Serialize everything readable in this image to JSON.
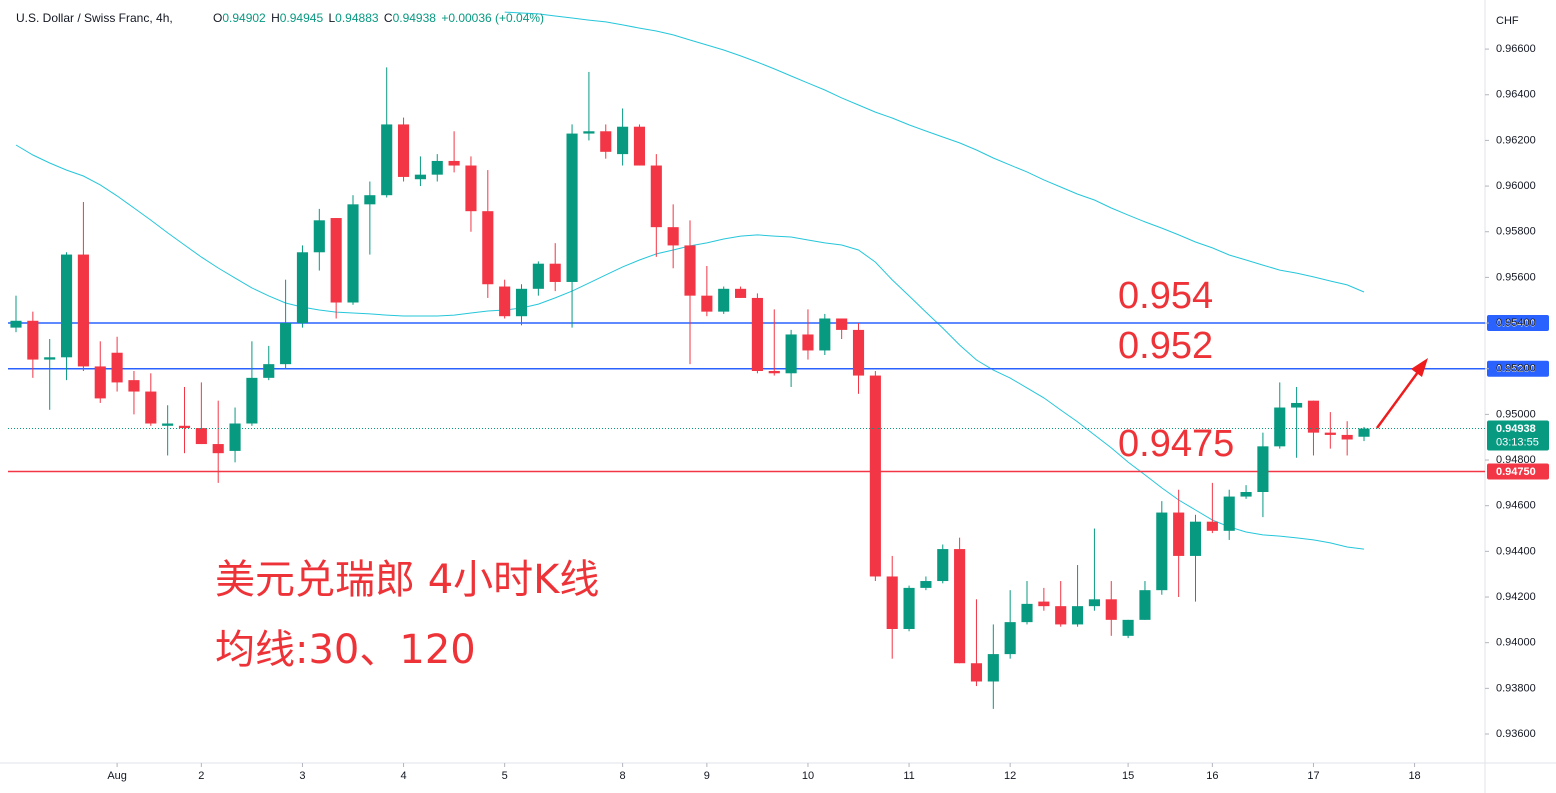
{
  "chart_data": {
    "type": "candlestick",
    "title": "U.S. Dollar / Swiss Franc, 4h,",
    "ohlc_labels": [
      "O",
      "H",
      "L",
      "C"
    ],
    "change": "+0.00036 (+0.04%)",
    "countdown": "03:13:55",
    "y_axis_label": "CHF",
    "up_color": "#089981",
    "down_color": "#f23645",
    "candles": {
      "open": [
        0.9538,
        0.9541,
        0.9524,
        0.9525,
        0.957,
        0.9521,
        0.9527,
        0.9515,
        0.951,
        0.9495,
        0.9495,
        0.9494,
        0.9487,
        0.9484,
        0.9496,
        0.9516,
        0.9522,
        0.954,
        0.9571,
        0.9586,
        0.9549,
        0.9592,
        0.9596,
        0.9627,
        0.9603,
        0.9605,
        0.9611,
        0.9609,
        0.9589,
        0.9556,
        0.9543,
        0.9555,
        0.9566,
        0.9558,
        0.9623,
        0.9624,
        0.9614,
        0.9626,
        0.9609,
        0.9582,
        0.9574,
        0.9552,
        0.9545,
        0.9555,
        0.9551,
        0.9519,
        0.9518,
        0.9535,
        0.9528,
        0.9542,
        0.9537,
        0.9517,
        0.9429,
        0.9406,
        0.9424,
        0.9427,
        0.9441,
        0.9391,
        0.9383,
        0.9395,
        0.9409,
        0.9418,
        0.9416,
        0.9408,
        0.9416,
        0.9419,
        0.9403,
        0.941,
        0.9423,
        0.9457,
        0.9438,
        0.9453,
        0.9449,
        0.9464,
        0.9466,
        0.9486,
        0.9503,
        0.9506,
        0.9492,
        0.9491,
        0.94902
      ],
      "high": [
        0.9552,
        0.9545,
        0.9533,
        0.9571,
        0.9593,
        0.9532,
        0.9534,
        0.9519,
        0.9518,
        0.9504,
        0.9512,
        0.9514,
        0.9506,
        0.9503,
        0.9532,
        0.953,
        0.9559,
        0.9574,
        0.959,
        0.9586,
        0.9596,
        0.9602,
        0.9652,
        0.963,
        0.9613,
        0.9614,
        0.9624,
        0.9613,
        0.9607,
        0.9559,
        0.9557,
        0.9567,
        0.9575,
        0.9627,
        0.965,
        0.9627,
        0.9634,
        0.9627,
        0.9614,
        0.9592,
        0.9585,
        0.9565,
        0.9556,
        0.9556,
        0.9553,
        0.9546,
        0.9537,
        0.9546,
        0.9544,
        0.9542,
        0.954,
        0.9519,
        0.9438,
        0.9425,
        0.9429,
        0.9443,
        0.9446,
        0.9419,
        0.9408,
        0.9423,
        0.9427,
        0.9424,
        0.9427,
        0.9434,
        0.945,
        0.9427,
        0.941,
        0.9427,
        0.9462,
        0.9467,
        0.9456,
        0.947,
        0.9467,
        0.9469,
        0.9492,
        0.9514,
        0.9512,
        0.9506,
        0.9501,
        0.9497,
        0.94945
      ],
      "low": [
        0.9536,
        0.9516,
        0.9502,
        0.9515,
        0.9519,
        0.9505,
        0.951,
        0.95,
        0.9495,
        0.9482,
        0.9483,
        0.9487,
        0.947,
        0.9479,
        0.9495,
        0.9515,
        0.952,
        0.9538,
        0.9563,
        0.9542,
        0.9548,
        0.957,
        0.9595,
        0.9602,
        0.96,
        0.9602,
        0.9606,
        0.958,
        0.9551,
        0.9542,
        0.9539,
        0.9552,
        0.9554,
        0.9538,
        0.962,
        0.9612,
        0.9609,
        0.9609,
        0.9569,
        0.9564,
        0.9522,
        0.9543,
        0.9544,
        0.9551,
        0.9518,
        0.9517,
        0.9512,
        0.9524,
        0.9526,
        0.9533,
        0.9509,
        0.9427,
        0.9393,
        0.9405,
        0.9423,
        0.9426,
        0.9391,
        0.9381,
        0.9371,
        0.9393,
        0.9408,
        0.9414,
        0.9407,
        0.9407,
        0.9414,
        0.9403,
        0.9402,
        0.941,
        0.9421,
        0.942,
        0.9418,
        0.9448,
        0.9445,
        0.9463,
        0.9455,
        0.9485,
        0.9481,
        0.9482,
        0.9485,
        0.9482,
        0.94883
      ],
      "close": [
        0.9541,
        0.9524,
        0.9525,
        0.957,
        0.9521,
        0.9507,
        0.9514,
        0.951,
        0.9496,
        0.9496,
        0.9494,
        0.9487,
        0.9483,
        0.9496,
        0.9516,
        0.9522,
        0.954,
        0.9571,
        0.9585,
        0.9549,
        0.9592,
        0.9596,
        0.9627,
        0.9604,
        0.9605,
        0.9611,
        0.9609,
        0.9589,
        0.9557,
        0.9543,
        0.9555,
        0.9566,
        0.9558,
        0.9623,
        0.9624,
        0.9615,
        0.9626,
        0.9609,
        0.9582,
        0.9574,
        0.9552,
        0.9545,
        0.9555,
        0.9551,
        0.9519,
        0.9518,
        0.9535,
        0.9528,
        0.9542,
        0.9537,
        0.9517,
        0.9429,
        0.9406,
        0.9424,
        0.9427,
        0.9441,
        0.9391,
        0.9383,
        0.9395,
        0.9409,
        0.9417,
        0.9416,
        0.9408,
        0.9416,
        0.9419,
        0.941,
        0.941,
        0.9423,
        0.9457,
        0.9438,
        0.9453,
        0.9449,
        0.9464,
        0.9466,
        0.9486,
        0.9503,
        0.9505,
        0.9492,
        0.9491,
        0.9489,
        0.94938
      ]
    },
    "moving_averages": [
      {
        "color": "#26c6da",
        "values": [
          0.9618,
          0.96136,
          0.96101,
          0.9607,
          0.96044,
          0.96005,
          0.95957,
          0.95904,
          0.95851,
          0.95795,
          0.95742,
          0.95689,
          0.95641,
          0.95597,
          0.95554,
          0.95519,
          0.95488,
          0.9547,
          0.95457,
          0.95448,
          0.95444,
          0.9544,
          0.95435,
          0.95431,
          0.95431,
          0.95431,
          0.95435,
          0.95444,
          0.95453,
          0.95457,
          0.95466,
          0.95483,
          0.9551,
          0.9554,
          0.95575,
          0.95611,
          0.95646,
          0.95676,
          0.95703,
          0.9572,
          0.95738,
          0.95751,
          0.95768,
          0.95781,
          0.95786,
          0.95781,
          0.95777,
          0.95764,
          0.95751,
          0.95742,
          0.9572,
          0.95667,
          0.95589,
          0.95519,
          0.95448,
          0.95378,
          0.95304,
          0.95238,
          0.95194,
          0.95159,
          0.95116,
          0.95072,
          0.95019,
          0.94967,
          0.9491,
          0.94853,
          0.94791,
          0.94735,
          0.94678,
          0.94625,
          0.94581,
          0.94537,
          0.94507,
          0.94485,
          0.94472,
          0.94467,
          0.94459,
          0.9445,
          0.94437,
          0.94419,
          0.9441
        ]
      },
      {
        "color": "#26c6da",
        "values": [
          null,
          null,
          null,
          null,
          null,
          null,
          null,
          null,
          null,
          null,
          null,
          null,
          null,
          null,
          null,
          null,
          null,
          null,
          null,
          null,
          null,
          null,
          null,
          null,
          null,
          null,
          null,
          null,
          null,
          0.96762,
          0.96758,
          0.96754,
          0.96745,
          0.96736,
          0.96727,
          0.96719,
          0.96706,
          0.96692,
          0.96679,
          0.96662,
          0.9664,
          0.96618,
          0.96596,
          0.9657,
          0.96543,
          0.96513,
          0.96482,
          0.96451,
          0.96421,
          0.96386,
          0.96355,
          0.96324,
          0.96298,
          0.96268,
          0.96241,
          0.96215,
          0.96189,
          0.96158,
          0.96123,
          0.96092,
          0.96062,
          0.96027,
          0.95996,
          0.95965,
          0.95939,
          0.95904,
          0.95873,
          0.95843,
          0.95816,
          0.95786,
          0.95755,
          0.95729,
          0.95698,
          0.95676,
          0.95654,
          0.95632,
          0.95619,
          0.95602,
          0.95584,
          0.95567,
          0.95536
        ]
      }
    ],
    "levels": [
      {
        "value": 0.954,
        "label": "0.95400",
        "color": "#2962ff"
      },
      {
        "value": 0.952,
        "label": "0.95200",
        "color": "#2962ff"
      },
      {
        "value": 0.9475,
        "label": "0.94750",
        "color": "#f23645"
      }
    ],
    "annotations": [
      "0.954",
      "0.952",
      "0.9475",
      "美元兑瑞郎 4小时K线",
      "均线:30、120"
    ],
    "xlim": [
      -0.475,
      87.18
    ],
    "xticks": [
      {
        "value": 6,
        "label": "Aug"
      },
      {
        "value": 11,
        "label": "2"
      },
      {
        "value": 17,
        "label": "3"
      },
      {
        "value": 23,
        "label": "4"
      },
      {
        "value": 29,
        "label": "5"
      },
      {
        "value": 36,
        "label": "8"
      },
      {
        "value": 41,
        "label": "9"
      },
      {
        "value": 47,
        "label": "10"
      },
      {
        "value": 53,
        "label": "11"
      },
      {
        "value": 59,
        "label": "12"
      },
      {
        "value": 66,
        "label": "15"
      },
      {
        "value": 71,
        "label": "16"
      },
      {
        "value": 77,
        "label": "17"
      },
      {
        "value": 83,
        "label": "18"
      }
    ],
    "ylim": [
      0.93473,
      0.96815
    ],
    "yticks": [
      {
        "value": 0.936,
        "label": "0.93600"
      },
      {
        "value": 0.938,
        "label": "0.93800"
      },
      {
        "value": 0.94,
        "label": "0.94000"
      },
      {
        "value": 0.942,
        "label": "0.94200"
      },
      {
        "value": 0.944,
        "label": "0.94400"
      },
      {
        "value": 0.946,
        "label": "0.94600"
      },
      {
        "value": 0.948,
        "label": "0.94800"
      },
      {
        "value": 0.95,
        "label": "0.95000"
      },
      {
        "value": 0.952,
        "label": "0.95200"
      },
      {
        "value": 0.954,
        "label": "0.95400"
      },
      {
        "value": 0.956,
        "label": "0.95600"
      },
      {
        "value": 0.958,
        "label": "0.95800"
      },
      {
        "value": 0.96,
        "label": "0.96000"
      },
      {
        "value": 0.962,
        "label": "0.96200"
      },
      {
        "value": 0.964,
        "label": "0.96400"
      },
      {
        "value": 0.966,
        "label": "0.96600"
      }
    ],
    "grid": false
  }
}
